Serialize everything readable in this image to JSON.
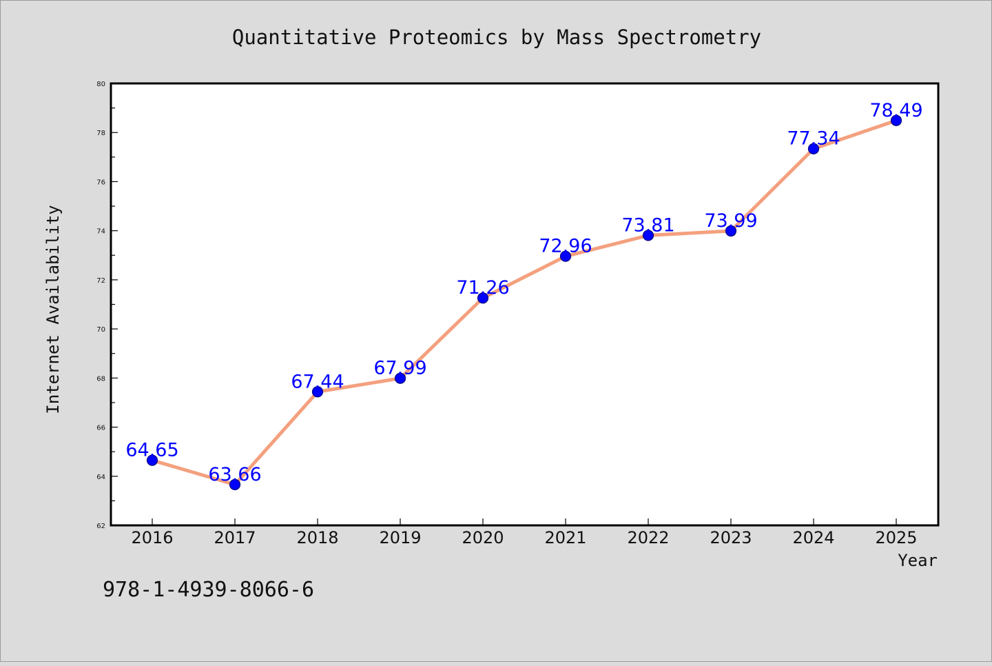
{
  "chart_data": {
    "type": "line",
    "title": "Quantitative Proteomics by Mass Spectrometry",
    "xlabel": "Year",
    "ylabel": "Internet Availability",
    "categories": [
      "2016",
      "2017",
      "2018",
      "2019",
      "2020",
      "2021",
      "2022",
      "2023",
      "2024",
      "2025"
    ],
    "series": [
      {
        "values": [
          64.65,
          63.66,
          67.44,
          67.99,
          71.26,
          72.96,
          73.81,
          73.99,
          77.34,
          78.49
        ]
      }
    ],
    "data_labels": [
      "64.65",
      "63.66",
      "67.44",
      "67.99",
      "71.26",
      "72.96",
      "73.81",
      "73.99",
      "77.34",
      "78.49"
    ],
    "ylim": [
      62,
      80
    ],
    "y_ticks": [
      "62",
      "64",
      "66",
      "68",
      "70",
      "72",
      "74",
      "76",
      "78",
      "80"
    ],
    "grid": false,
    "colors": {
      "line": "#f4a07e",
      "marker": "#0000ff",
      "label": "#0000ff",
      "plot_background": "#ffffff",
      "figure_background": "#dcdcdc"
    }
  },
  "annotation": {
    "isbn": "978-1-4939-8066-6"
  }
}
